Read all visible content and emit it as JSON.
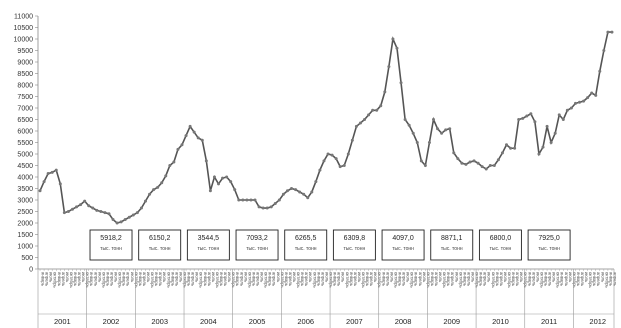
{
  "chart_data": {
    "type": "line",
    "title": "",
    "xlabel": "",
    "ylabel": "",
    "ylim": [
      0,
      11000
    ],
    "y_ticks": [
      0,
      500,
      1000,
      1500,
      2000,
      2500,
      3000,
      3500,
      4000,
      4500,
      5000,
      5500,
      6000,
      6500,
      7000,
      7500,
      8000,
      8500,
      9000,
      9500,
      10000,
      10500,
      11000
    ],
    "grid": false,
    "legend": "none",
    "line_color": "#555555",
    "marker_color": "#777777",
    "years": [
      "2001",
      "2002",
      "2003",
      "2004",
      "2005",
      "2006",
      "2007",
      "2008",
      "2009",
      "2010",
      "2011",
      "2012"
    ],
    "month_labels": [
      "январь",
      "апрель",
      "июль",
      "октябрь"
    ],
    "y_values": [
      3400,
      3800,
      4150,
      4200,
      4300,
      3700,
      2450,
      2500,
      2600,
      2700,
      2800,
      2950,
      2750,
      2650,
      2550,
      2500,
      2450,
      2400,
      2150,
      2000,
      2050,
      2150,
      2250,
      2350,
      2450,
      2650,
      2950,
      3250,
      3450,
      3550,
      3750,
      4050,
      4500,
      4650,
      5200,
      5400,
      5800,
      6200,
      5950,
      5700,
      5600,
      4700,
      3400,
      4000,
      3700,
      3950,
      4000,
      3800,
      3450,
      3000,
      3000,
      3000,
      3000,
      3000,
      2700,
      2650,
      2650,
      2700,
      2850,
      3000,
      3250,
      3400,
      3500,
      3450,
      3350,
      3250,
      3100,
      3350,
      3800,
      4300,
      4700,
      5000,
      4950,
      4800,
      4450,
      4500,
      5000,
      5600,
      6200,
      6350,
      6500,
      6700,
      6900,
      6900,
      7100,
      7700,
      8800,
      10000,
      9600,
      8100,
      6500,
      6250,
      5900,
      5500,
      4700,
      4500,
      5500,
      6500,
      6100,
      5900,
      6050,
      6100,
      5050,
      4800,
      4600,
      4550,
      4650,
      4700,
      4600,
      4450,
      4350,
      4500,
      4500,
      4750,
      5050,
      5400,
      5250,
      5250,
      6500,
      6550,
      6650,
      6750,
      6400,
      5000,
      5300,
      6200,
      5500,
      5900,
      6700,
      6500,
      6900,
      7000,
      7200,
      7250,
      7300,
      7450,
      7650,
      7550,
      8600,
      9500,
      10300,
      10300
    ],
    "annotations": [
      {
        "value": "5918,2",
        "unit": "тыс. тонн"
      },
      {
        "value": "6150,2",
        "unit": "тыс. тонн"
      },
      {
        "value": "3544,5",
        "unit": "тыс. тонн"
      },
      {
        "value": "7093,2",
        "unit": "тыс. тонн"
      },
      {
        "value": "6265,5",
        "unit": "тыс. тонн"
      },
      {
        "value": "6309,8",
        "unit": "тыс. тонн"
      },
      {
        "value": "4097,0",
        "unit": "тыс. тонн"
      },
      {
        "value": "8871,1",
        "unit": "тыс. тонн"
      },
      {
        "value": "6800,0",
        "unit": "тыс. тонн"
      },
      {
        "value": "7925,0",
        "unit": "тыс. тонн"
      }
    ]
  }
}
